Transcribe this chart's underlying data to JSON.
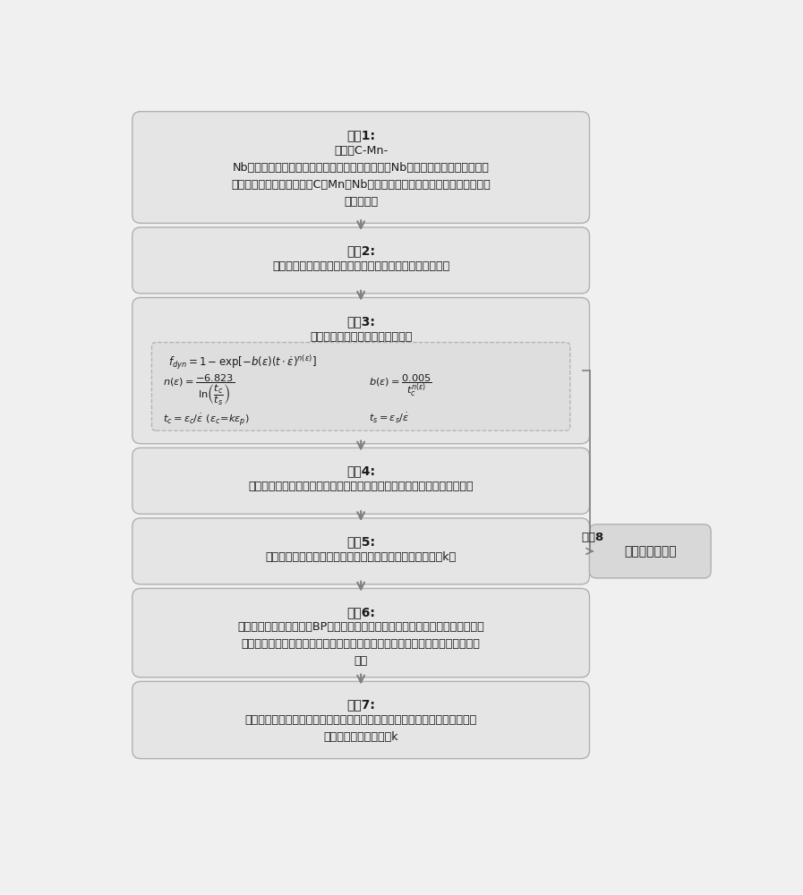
{
  "bg_color": "#f0f0f0",
  "box_bg": "#e5e5e5",
  "box_border": "#b0b0b0",
  "formula_border_color": "#b0b0b0",
  "formula_bg": "#dedede",
  "side_box_bg": "#d8d8d8",
  "side_box_border": "#b0b0b0",
  "arrow_color": "#808080",
  "text_color": "#1a1a1a",
  "step1_title": "步骤1:",
  "step1_body": "以现有C-Mn-\nNb微合金钢动态再结晶型流变应力的实验数据构建Nb微合金钢动态再结晶行为的\n初始数据集，数据集包括：C、Mn和Nb含量、加热温度、变形温度、应变速率和\n最大应变量",
  "step2_title": "步骤2:",
  "step2_body": "筛选符合物理冶金学规律的流变应力曲线，获得筛选数据集",
  "step3_title": "步骤3:",
  "step3_body": "选择动态再结晶分数数学模型形式",
  "step4_title": "步骤4:",
  "step4_body": "确定筛选数据集中每条流变应力曲线的实测临界应变、峰值应变、稳态应变",
  "step5_title": "步骤5:",
  "step5_body": "根据临界应变与峰值应变的关系，计算每条流变应力曲线的k值",
  "step6_title": "步骤6:",
  "step6_body": "采用基于贝叶斯正则化的BP神经网络建立化学成分、工艺参数与动态再结晶型流\n变应力特征间的非线性映射网络关系模型，进行模型的训练，获得训练好的网络\n模型",
  "step7_title": "步骤7:",
  "step7_body": "根据训练好的网络关系模型，选取至少一组成分及工艺，预测流变应力特征：\n峰值应变、稳态应变和k",
  "step8_label": "步骤8",
  "side_box_text": "动态再结晶分数"
}
